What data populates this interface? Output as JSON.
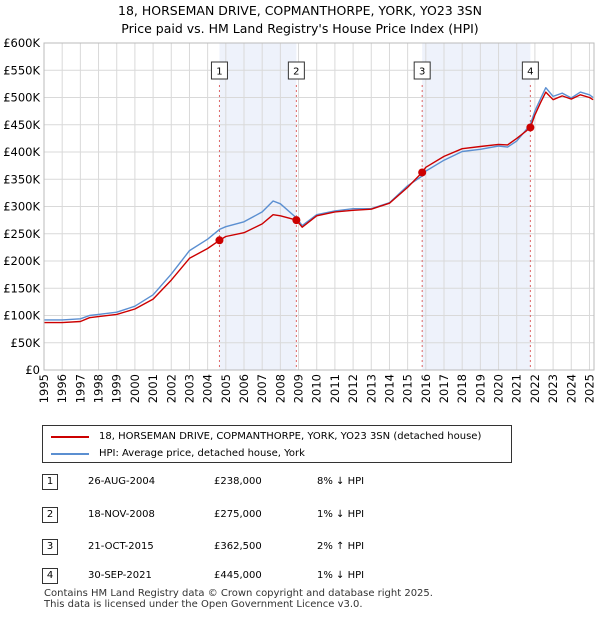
{
  "title_line1": "18, HORSEMAN DRIVE, COPMANTHORPE, YORK, YO23 3SN",
  "title_line2": "Price paid vs. HM Land Registry's House Price Index (HPI)",
  "chart_data": {
    "type": "line",
    "title": "18, HORSEMAN DRIVE, COPMANTHORPE, YORK, YO23 3SN — Price paid vs. HM Land Registry's House Price Index (HPI)",
    "xlabel": "",
    "ylabel": "",
    "xlim": [
      1995,
      2025.25
    ],
    "ylim": [
      0,
      600000
    ],
    "x_ticks": [
      1995,
      1996,
      1997,
      1998,
      1999,
      2000,
      2001,
      2002,
      2003,
      2004,
      2005,
      2006,
      2007,
      2008,
      2009,
      2010,
      2011,
      2012,
      2013,
      2014,
      2015,
      2016,
      2017,
      2018,
      2019,
      2020,
      2021,
      2022,
      2023,
      2024,
      2025
    ],
    "y_ticks": [
      {
        "value": 0,
        "label": "£0"
      },
      {
        "value": 50000,
        "label": "£50K"
      },
      {
        "value": 100000,
        "label": "£100K"
      },
      {
        "value": 150000,
        "label": "£150K"
      },
      {
        "value": 200000,
        "label": "£200K"
      },
      {
        "value": 250000,
        "label": "£250K"
      },
      {
        "value": 300000,
        "label": "£300K"
      },
      {
        "value": 350000,
        "label": "£350K"
      },
      {
        "value": 400000,
        "label": "£400K"
      },
      {
        "value": 450000,
        "label": "£450K"
      },
      {
        "value": 500000,
        "label": "£500K"
      },
      {
        "value": 550000,
        "label": "£550K"
      },
      {
        "value": 600000,
        "label": "£600K"
      }
    ],
    "grid": true,
    "shaded_periods": [
      [
        2004.65,
        2008.88
      ],
      [
        2015.8,
        2021.75
      ]
    ],
    "series": [
      {
        "name": "18, HORSEMAN DRIVE, COPMANTHORPE, YORK, YO23 3SN (detached house)",
        "color": "#cc0000",
        "x": [
          1995.0,
          1996.0,
          1997.0,
          1997.5,
          1998.0,
          1999.0,
          2000.0,
          2001.0,
          2002.0,
          2003.0,
          2004.0,
          2004.65,
          2005.0,
          2006.0,
          2007.0,
          2007.6,
          2008.0,
          2008.88,
          2009.2,
          2010.0,
          2011.0,
          2012.0,
          2013.0,
          2014.0,
          2015.0,
          2015.8,
          2016.0,
          2017.0,
          2018.0,
          2019.0,
          2020.0,
          2020.5,
          2021.0,
          2021.5,
          2021.75,
          2022.0,
          2022.3,
          2022.6,
          2023.0,
          2023.5,
          2024.0,
          2024.5,
          2025.0,
          2025.2
        ],
        "values": [
          87000,
          87000,
          89000,
          96000,
          98000,
          102000,
          112000,
          130000,
          165000,
          205000,
          223000,
          238000,
          245000,
          252000,
          268000,
          285000,
          283000,
          275000,
          262000,
          283000,
          290000,
          293000,
          295000,
          306000,
          335000,
          362500,
          372000,
          392000,
          406000,
          410000,
          414000,
          413000,
          425000,
          438000,
          445000,
          468000,
          490000,
          510000,
          496000,
          503000,
          497000,
          505000,
          500000,
          496000
        ]
      },
      {
        "name": "HPI: Average price, detached house, York",
        "color": "#5b8fd1",
        "x": [
          1995.0,
          1996.0,
          1997.0,
          1997.5,
          1998.0,
          1999.0,
          2000.0,
          2001.0,
          2002.0,
          2003.0,
          2004.0,
          2004.65,
          2005.0,
          2006.0,
          2007.0,
          2007.6,
          2008.0,
          2008.88,
          2009.2,
          2010.0,
          2011.0,
          2012.0,
          2013.0,
          2014.0,
          2015.0,
          2015.8,
          2016.0,
          2017.0,
          2018.0,
          2019.0,
          2020.0,
          2020.5,
          2021.0,
          2021.5,
          2021.75,
          2022.0,
          2022.3,
          2022.6,
          2023.0,
          2023.5,
          2024.0,
          2024.5,
          2025.0,
          2025.2
        ],
        "values": [
          92000,
          92000,
          94000,
          100000,
          102000,
          106000,
          117000,
          138000,
          176000,
          219000,
          240000,
          258000,
          263000,
          272000,
          290000,
          310000,
          305000,
          279000,
          265000,
          285000,
          292000,
          296000,
          296000,
          307000,
          338000,
          356000,
          365000,
          385000,
          401000,
          405000,
          411000,
          409000,
          420000,
          440000,
          451000,
          475000,
          497000,
          518000,
          502000,
          508000,
          499000,
          510000,
          505000,
          500000
        ]
      }
    ],
    "sale_markers": [
      {
        "label": "1",
        "x": 2004.65,
        "value": 238000
      },
      {
        "label": "2",
        "x": 2008.88,
        "value": 275000
      },
      {
        "label": "3",
        "x": 2015.8,
        "value": 362500
      },
      {
        "label": "4",
        "x": 2021.75,
        "value": 445000
      }
    ]
  },
  "legend": {
    "property_label": "18, HORSEMAN DRIVE, COPMANTHORPE, YORK, YO23 3SN (detached house)",
    "hpi_label": "HPI: Average price, detached house, York"
  },
  "sales": [
    {
      "num": "1",
      "date": "26-AUG-2004",
      "price": "£238,000",
      "hpi": "8% ↓ HPI"
    },
    {
      "num": "2",
      "date": "18-NOV-2008",
      "price": "£275,000",
      "hpi": "1% ↓ HPI"
    },
    {
      "num": "3",
      "date": "21-OCT-2015",
      "price": "£362,500",
      "hpi": "2% ↑ HPI"
    },
    {
      "num": "4",
      "date": "30-SEP-2021",
      "price": "£445,000",
      "hpi": "1% ↓ HPI"
    }
  ],
  "footer": {
    "line1": "Contains HM Land Registry data © Crown copyright and database right 2025.",
    "line2": "This data is licensed under the Open Government Licence v3.0."
  },
  "colors": {
    "property_line": "#cc0000",
    "hpi_line": "#5b8fd1",
    "shade": "#eef2fb",
    "marker_dash": "#dd6666"
  }
}
